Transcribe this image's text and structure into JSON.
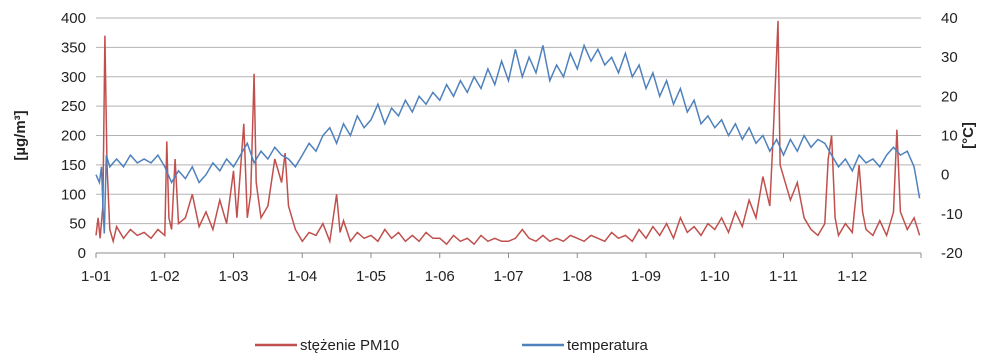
{
  "chart_data": {
    "type": "line",
    "title": "",
    "x_axis": {
      "labels": [
        "1-01",
        "1-02",
        "1-03",
        "1-04",
        "1-05",
        "1-06",
        "1-07",
        "1-08",
        "1-09",
        "1-10",
        "1-11",
        "1-12"
      ],
      "range_months": [
        1,
        13
      ]
    },
    "y_left": {
      "label": "[µg/m³]",
      "min": 0,
      "max": 400,
      "step": 50,
      "ticks": [
        "0",
        "50",
        "100",
        "150",
        "200",
        "250",
        "300",
        "350",
        "400"
      ]
    },
    "y_right": {
      "label": "[°C]",
      "min": -20,
      "max": 40,
      "step": 10,
      "ticks": [
        "-20",
        "-10",
        "0",
        "10",
        "20",
        "30",
        "40"
      ]
    },
    "grid": "horizontal",
    "legend_position": "bottom",
    "series": [
      {
        "name": "stężenie PM10",
        "color": "#c0504d",
        "axis": "left",
        "points": [
          [
            1.0,
            30
          ],
          [
            1.03,
            60
          ],
          [
            1.06,
            25
          ],
          [
            1.1,
            80
          ],
          [
            1.13,
            370
          ],
          [
            1.16,
            150
          ],
          [
            1.2,
            40
          ],
          [
            1.25,
            20
          ],
          [
            1.3,
            45
          ],
          [
            1.4,
            25
          ],
          [
            1.5,
            40
          ],
          [
            1.6,
            30
          ],
          [
            1.7,
            35
          ],
          [
            1.8,
            25
          ],
          [
            1.9,
            40
          ],
          [
            2.0,
            30
          ],
          [
            2.03,
            190
          ],
          [
            2.06,
            60
          ],
          [
            2.1,
            40
          ],
          [
            2.15,
            160
          ],
          [
            2.2,
            50
          ],
          [
            2.3,
            60
          ],
          [
            2.4,
            100
          ],
          [
            2.5,
            45
          ],
          [
            2.6,
            70
          ],
          [
            2.7,
            40
          ],
          [
            2.8,
            90
          ],
          [
            2.9,
            50
          ],
          [
            3.0,
            140
          ],
          [
            3.05,
            60
          ],
          [
            3.1,
            140
          ],
          [
            3.15,
            220
          ],
          [
            3.2,
            60
          ],
          [
            3.25,
            100
          ],
          [
            3.3,
            305
          ],
          [
            3.33,
            120
          ],
          [
            3.4,
            60
          ],
          [
            3.5,
            80
          ],
          [
            3.6,
            160
          ],
          [
            3.7,
            120
          ],
          [
            3.75,
            170
          ],
          [
            3.8,
            80
          ],
          [
            3.9,
            40
          ],
          [
            4.0,
            20
          ],
          [
            4.1,
            35
          ],
          [
            4.2,
            30
          ],
          [
            4.3,
            50
          ],
          [
            4.4,
            20
          ],
          [
            4.5,
            100
          ],
          [
            4.55,
            35
          ],
          [
            4.6,
            55
          ],
          [
            4.7,
            20
          ],
          [
            4.8,
            35
          ],
          [
            4.9,
            25
          ],
          [
            5.0,
            30
          ],
          [
            5.1,
            20
          ],
          [
            5.2,
            40
          ],
          [
            5.3,
            25
          ],
          [
            5.4,
            35
          ],
          [
            5.5,
            20
          ],
          [
            5.6,
            30
          ],
          [
            5.7,
            20
          ],
          [
            5.8,
            35
          ],
          [
            5.9,
            25
          ],
          [
            6.0,
            25
          ],
          [
            6.1,
            15
          ],
          [
            6.2,
            30
          ],
          [
            6.3,
            20
          ],
          [
            6.4,
            25
          ],
          [
            6.5,
            15
          ],
          [
            6.6,
            30
          ],
          [
            6.7,
            20
          ],
          [
            6.8,
            25
          ],
          [
            6.9,
            20
          ],
          [
            7.0,
            20
          ],
          [
            7.1,
            25
          ],
          [
            7.2,
            40
          ],
          [
            7.3,
            25
          ],
          [
            7.4,
            20
          ],
          [
            7.5,
            30
          ],
          [
            7.6,
            20
          ],
          [
            7.7,
            25
          ],
          [
            7.8,
            20
          ],
          [
            7.9,
            30
          ],
          [
            8.0,
            25
          ],
          [
            8.1,
            20
          ],
          [
            8.2,
            30
          ],
          [
            8.3,
            25
          ],
          [
            8.4,
            20
          ],
          [
            8.5,
            35
          ],
          [
            8.6,
            25
          ],
          [
            8.7,
            30
          ],
          [
            8.8,
            20
          ],
          [
            8.9,
            40
          ],
          [
            9.0,
            25
          ],
          [
            9.1,
            45
          ],
          [
            9.2,
            30
          ],
          [
            9.3,
            50
          ],
          [
            9.4,
            25
          ],
          [
            9.5,
            60
          ],
          [
            9.6,
            35
          ],
          [
            9.7,
            45
          ],
          [
            9.8,
            30
          ],
          [
            9.9,
            50
          ],
          [
            10.0,
            40
          ],
          [
            10.1,
            60
          ],
          [
            10.2,
            35
          ],
          [
            10.3,
            70
          ],
          [
            10.4,
            45
          ],
          [
            10.5,
            90
          ],
          [
            10.6,
            60
          ],
          [
            10.7,
            130
          ],
          [
            10.8,
            80
          ],
          [
            10.85,
            200
          ],
          [
            10.92,
            395
          ],
          [
            10.95,
            150
          ],
          [
            11.0,
            130
          ],
          [
            11.1,
            90
          ],
          [
            11.2,
            120
          ],
          [
            11.3,
            60
          ],
          [
            11.4,
            40
          ],
          [
            11.5,
            30
          ],
          [
            11.6,
            50
          ],
          [
            11.65,
            160
          ],
          [
            11.7,
            200
          ],
          [
            11.75,
            60
          ],
          [
            11.8,
            30
          ],
          [
            11.9,
            50
          ],
          [
            12.0,
            35
          ],
          [
            12.1,
            150
          ],
          [
            12.15,
            70
          ],
          [
            12.2,
            40
          ],
          [
            12.3,
            30
          ],
          [
            12.4,
            55
          ],
          [
            12.5,
            30
          ],
          [
            12.6,
            70
          ],
          [
            12.65,
            210
          ],
          [
            12.7,
            70
          ],
          [
            12.8,
            40
          ],
          [
            12.9,
            60
          ],
          [
            12.98,
            30
          ]
        ]
      },
      {
        "name": "temperatura",
        "color": "#4f81bd",
        "axis": "right",
        "points": [
          [
            1.0,
            0
          ],
          [
            1.05,
            -2
          ],
          [
            1.08,
            2
          ],
          [
            1.1,
            -8
          ],
          [
            1.12,
            -15
          ],
          [
            1.15,
            5
          ],
          [
            1.2,
            2
          ],
          [
            1.3,
            4
          ],
          [
            1.4,
            2
          ],
          [
            1.5,
            5
          ],
          [
            1.6,
            3
          ],
          [
            1.7,
            4
          ],
          [
            1.8,
            3
          ],
          [
            1.9,
            5
          ],
          [
            2.0,
            2
          ],
          [
            2.1,
            -2
          ],
          [
            2.2,
            1
          ],
          [
            2.3,
            -1
          ],
          [
            2.4,
            2
          ],
          [
            2.5,
            -2
          ],
          [
            2.6,
            0
          ],
          [
            2.7,
            3
          ],
          [
            2.8,
            1
          ],
          [
            2.9,
            4
          ],
          [
            3.0,
            2
          ],
          [
            3.1,
            5
          ],
          [
            3.2,
            8
          ],
          [
            3.3,
            3
          ],
          [
            3.4,
            6
          ],
          [
            3.5,
            4
          ],
          [
            3.6,
            7
          ],
          [
            3.7,
            5
          ],
          [
            3.8,
            4
          ],
          [
            3.9,
            2
          ],
          [
            4.0,
            5
          ],
          [
            4.1,
            8
          ],
          [
            4.2,
            6
          ],
          [
            4.3,
            10
          ],
          [
            4.4,
            12
          ],
          [
            4.5,
            8
          ],
          [
            4.6,
            13
          ],
          [
            4.7,
            10
          ],
          [
            4.8,
            15
          ],
          [
            4.9,
            12
          ],
          [
            5.0,
            14
          ],
          [
            5.1,
            18
          ],
          [
            5.2,
            13
          ],
          [
            5.3,
            17
          ],
          [
            5.4,
            15
          ],
          [
            5.5,
            19
          ],
          [
            5.6,
            16
          ],
          [
            5.7,
            20
          ],
          [
            5.8,
            18
          ],
          [
            5.9,
            21
          ],
          [
            6.0,
            19
          ],
          [
            6.1,
            23
          ],
          [
            6.2,
            20
          ],
          [
            6.3,
            24
          ],
          [
            6.4,
            21
          ],
          [
            6.5,
            25
          ],
          [
            6.6,
            22
          ],
          [
            6.7,
            27
          ],
          [
            6.8,
            23
          ],
          [
            6.9,
            29
          ],
          [
            7.0,
            24
          ],
          [
            7.1,
            32
          ],
          [
            7.2,
            25
          ],
          [
            7.3,
            30
          ],
          [
            7.4,
            26
          ],
          [
            7.5,
            33
          ],
          [
            7.6,
            24
          ],
          [
            7.7,
            28
          ],
          [
            7.8,
            25
          ],
          [
            7.9,
            31
          ],
          [
            8.0,
            27
          ],
          [
            8.1,
            33
          ],
          [
            8.2,
            29
          ],
          [
            8.3,
            32
          ],
          [
            8.4,
            28
          ],
          [
            8.5,
            30
          ],
          [
            8.6,
            26
          ],
          [
            8.7,
            31
          ],
          [
            8.8,
            25
          ],
          [
            8.9,
            28
          ],
          [
            9.0,
            22
          ],
          [
            9.1,
            26
          ],
          [
            9.2,
            20
          ],
          [
            9.3,
            24
          ],
          [
            9.4,
            18
          ],
          [
            9.5,
            22
          ],
          [
            9.6,
            16
          ],
          [
            9.7,
            19
          ],
          [
            9.8,
            13
          ],
          [
            9.9,
            15
          ],
          [
            10.0,
            12
          ],
          [
            10.1,
            14
          ],
          [
            10.2,
            10
          ],
          [
            10.3,
            13
          ],
          [
            10.4,
            9
          ],
          [
            10.5,
            12
          ],
          [
            10.6,
            8
          ],
          [
            10.7,
            10
          ],
          [
            10.8,
            6
          ],
          [
            10.9,
            9
          ],
          [
            11.0,
            5
          ],
          [
            11.1,
            9
          ],
          [
            11.2,
            6
          ],
          [
            11.3,
            10
          ],
          [
            11.4,
            7
          ],
          [
            11.5,
            9
          ],
          [
            11.6,
            8
          ],
          [
            11.7,
            5
          ],
          [
            11.8,
            2
          ],
          [
            11.9,
            4
          ],
          [
            12.0,
            1
          ],
          [
            12.1,
            5
          ],
          [
            12.2,
            3
          ],
          [
            12.3,
            4
          ],
          [
            12.4,
            2
          ],
          [
            12.5,
            5
          ],
          [
            12.6,
            7
          ],
          [
            12.7,
            5
          ],
          [
            12.8,
            6
          ],
          [
            12.9,
            2
          ],
          [
            12.98,
            -6
          ]
        ]
      }
    ]
  }
}
